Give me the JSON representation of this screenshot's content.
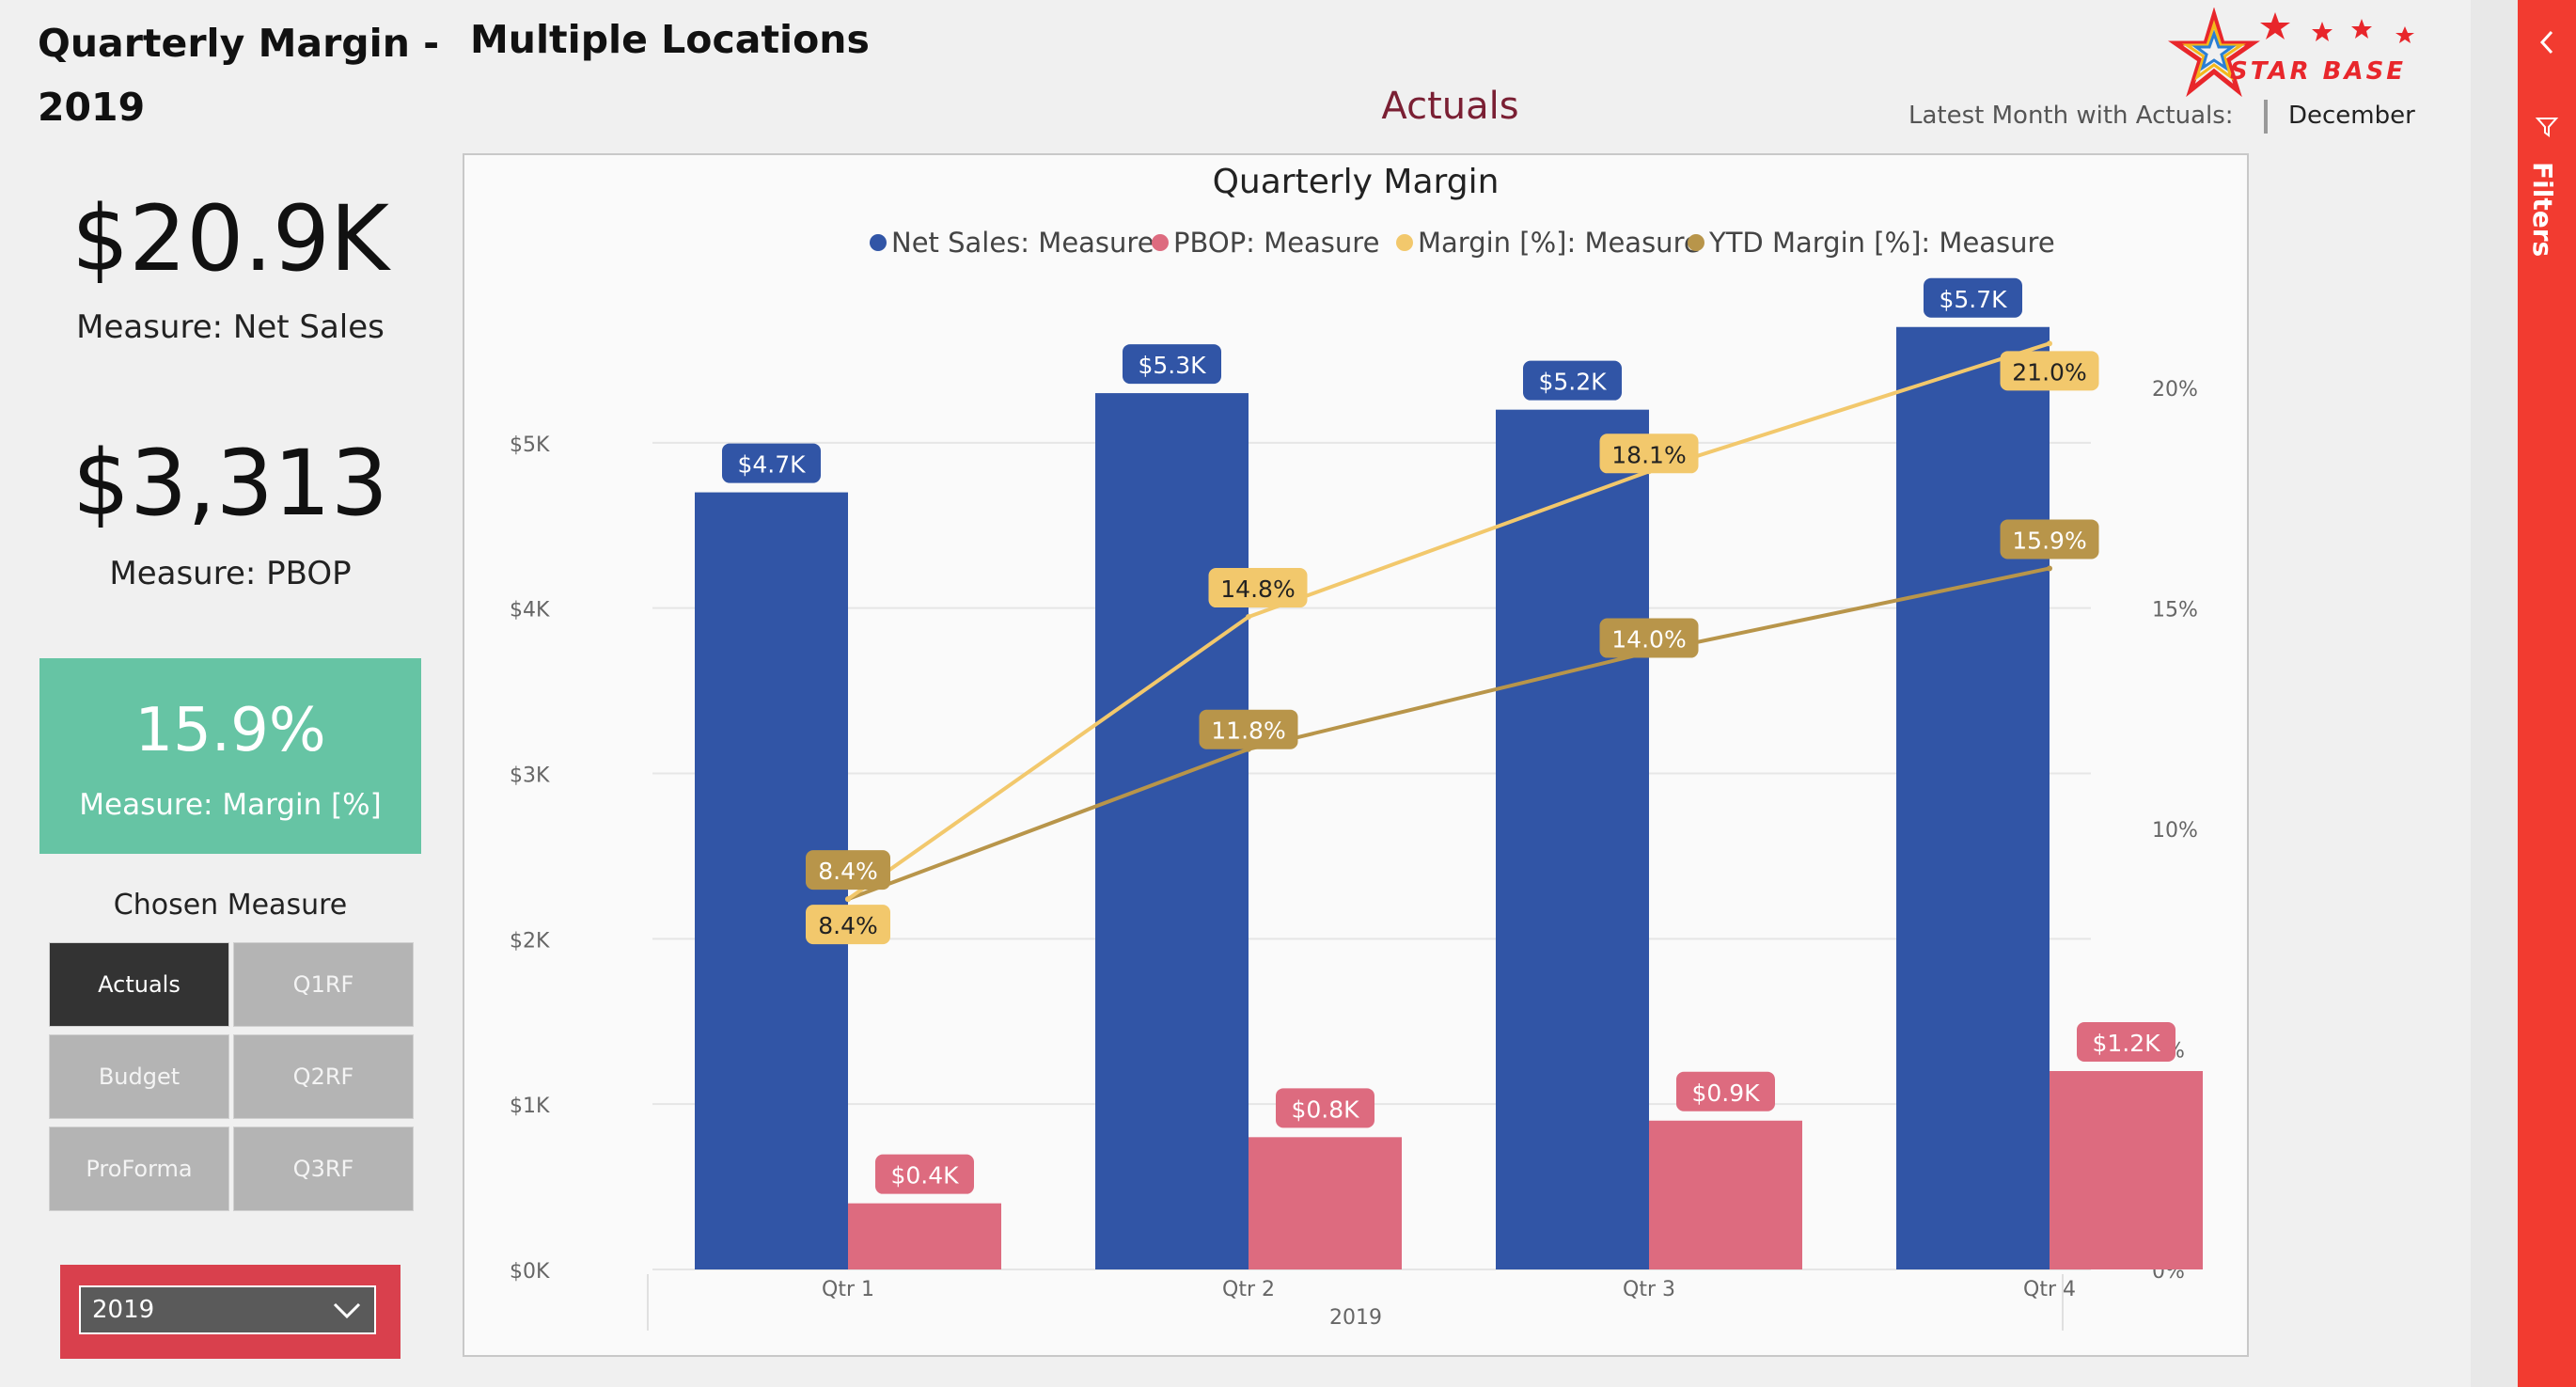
{
  "header": {
    "title_line1": "Quarterly Margin -",
    "title_line2": "2019",
    "subtitle": "Multiple Locations",
    "logo_text": "STAR BASE"
  },
  "kpis": {
    "net_sales_value": "$20.9K",
    "net_sales_label": "Measure: Net Sales",
    "pbop_value": "$3,313",
    "pbop_label": "Measure: PBOP",
    "margin_value": "15.9%",
    "margin_label": "Measure: Margin [%]"
  },
  "measure_selector": {
    "title": "Chosen Measure",
    "buttons": [
      "Actuals",
      "Q1RF",
      "Budget",
      "Q2RF",
      "ProForma",
      "Q3RF"
    ],
    "active": "Actuals"
  },
  "year_filter": {
    "selected": "2019"
  },
  "actuals_heading": "Actuals",
  "latest_month": {
    "label": "Latest Month with Actuals:",
    "value": "December"
  },
  "filters_pane": {
    "label": "Filters"
  },
  "colors": {
    "net_sales": "#3155a6",
    "pbop": "#dd6b7f",
    "margin": "#f2c86c",
    "ytd_margin": "#b8954a",
    "kpi_card": "#66c4a4",
    "filters_pane": "#f23b30",
    "actuals_heading": "#7a1f33"
  },
  "chart_data": {
    "type": "bar",
    "title": "Quarterly Margin",
    "categories": [
      "Qtr 1",
      "Qtr 2",
      "Qtr 3",
      "Qtr 4"
    ],
    "group_label": "2019",
    "series": [
      {
        "name": "Net Sales: Measure",
        "kind": "bar",
        "axis": "left",
        "values": [
          4700,
          5300,
          5200,
          5700
        ],
        "labels": [
          "$4.7K",
          "$5.3K",
          "$5.2K",
          "$5.7K"
        ]
      },
      {
        "name": "PBOP: Measure",
        "kind": "bar",
        "axis": "left",
        "values": [
          400,
          800,
          900,
          1200
        ],
        "labels": [
          "$0.4K",
          "$0.8K",
          "$0.9K",
          "$1.2K"
        ]
      },
      {
        "name": "Margin [%]: Measure",
        "kind": "line",
        "axis": "right",
        "values": [
          8.4,
          14.8,
          18.1,
          21.0
        ],
        "labels": [
          "8.4%",
          "14.8%",
          "18.1%",
          "21.0%"
        ]
      },
      {
        "name": "YTD Margin [%]: Measure",
        "kind": "line",
        "axis": "right",
        "values": [
          8.4,
          11.8,
          14.0,
          15.9
        ],
        "labels": [
          "8.4%",
          "11.8%",
          "14.0%",
          "15.9%"
        ]
      }
    ],
    "y_left": {
      "min": 0,
      "max": 6000,
      "ticks": [
        0,
        1000,
        2000,
        3000,
        4000,
        5000
      ],
      "tick_labels": [
        "$0K",
        "$1K",
        "$2K",
        "$3K",
        "$4K",
        "$5K"
      ]
    },
    "y_right": {
      "min": 0,
      "max": 22.5,
      "ticks": [
        0,
        5,
        10,
        15,
        20
      ],
      "tick_labels": [
        "0%",
        "5%",
        "10%",
        "15%",
        "20%"
      ]
    },
    "legend_position": "top-center",
    "grid": true
  }
}
